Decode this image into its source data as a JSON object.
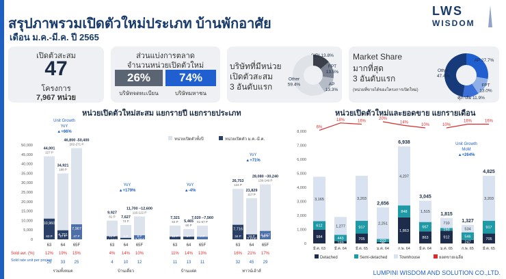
{
  "header": {
    "title": "สรุปภาพรวมเปิดตัวใหม่ประเภท บ้านพักอาศัย",
    "subtitle": "เดือน ม.ค.-มี.ค. ปี 2565",
    "logo_line1": "LWS",
    "logo_line2": "WISDOM"
  },
  "kpi_launch": {
    "label": "เปิดตัวสะสม",
    "value": "47",
    "unit": "โครงการ",
    "units_text": "7,967 หน่วย"
  },
  "kpi_share": {
    "title_line1": "ส่วนแบ่งการตลาด",
    "title_line2": "จำนวนหน่วยเปิดตัวใหม่",
    "listed_value": "26%",
    "listed_label": "บริษัทจดทะเบียน",
    "nonlisted_value": "74%",
    "nonlisted_label": "บริษัทมหาชน",
    "colors": {
      "listed": "#5b6472",
      "nonlisted": "#1f5fd0"
    }
  },
  "kpi_top3": {
    "line1": "บริษัทที่มีหน่วย",
    "line2": "เปิดตัวสะสม",
    "line3": "3 อันดับแรก",
    "donut": [
      {
        "label": "SIRI",
        "value": 13.8,
        "text": "SIRI 13.8%",
        "color": "#3a3f4a"
      },
      {
        "label": "FPT",
        "value": 13.5,
        "text": "FPT\n13.5%",
        "color": "#7a8190"
      },
      {
        "label": "AP",
        "value": 13.3,
        "text": "AP\n13.3%",
        "color": "#b6bcc7"
      },
      {
        "label": "Other",
        "value": 59.4,
        "text": "Other\n59.4%",
        "color": "#dfe2e7"
      }
    ]
  },
  "kpi_market": {
    "line1": "Market Share",
    "line2": "มากที่สุด",
    "line3": "3 อันดับแรก",
    "note": "(หน่วยที่ขายได้ของโครงการเปิดใหม่)",
    "donut": [
      {
        "label": "AP",
        "value": 27.7,
        "text": "AP 27.7%",
        "color": "#1f5fd0"
      },
      {
        "label": "FPT",
        "value": 13.0,
        "text": "FPT\n13.0%",
        "color": "#8fb0e6"
      },
      {
        "label": "ศุภาลัย",
        "value": 11.9,
        "text": "ศุภาลัย 11.9%",
        "color": "#3a6fd8"
      },
      {
        "label": "Other",
        "value": 47.4,
        "text": "Other\n47.4%",
        "color": "#173a7a"
      }
    ]
  },
  "footer": {
    "company": "LUMPINI WISDOM AND SOLUTION CO.,LTD."
  },
  "chart_data": [
    {
      "type": "bar",
      "title": "หน่วยเปิดตัวใหม่สะสม แยกรายปี แยกรายประเภท",
      "legend": [
        "หน่วยเปิดตัวทั้งปี",
        "หน่วยเปิดตัว ม.ค.-มี.ค."
      ],
      "colors": {
        "full": "#dde3ec",
        "q1": "#2a3f66",
        "q1_light": "#4f6fa8"
      },
      "yticks": [
        "50,000",
        "45,000",
        "40,000",
        "35,000",
        "30,000",
        "25,000",
        "20,000",
        "15,000",
        "10,000",
        "5,000",
        "0"
      ],
      "ylim": [
        0,
        50000
      ],
      "categories": [
        "63",
        "64",
        "65F"
      ],
      "groups": [
        {
          "name": "รวมทั้งหมด",
          "full": [
            44001,
            34921,
            48300
          ],
          "full_labels": [
            "44,001",
            "34,921",
            "46,800 -50,400"
          ],
          "full_sub": [
            "227 P",
            "188 P",
            "262-271 P"
          ],
          "q1": [
            10960,
            4791,
            7967
          ],
          "q1_labels": [
            "10,960",
            "4,791",
            "7,967"
          ],
          "q1_sub": [
            "63 P",
            "27 P",
            "47 P"
          ],
          "growth": "+66%",
          "growth_label": "Unit Growth",
          "growth_sub": "YoY"
        },
        {
          "name": "บ้านเดี่ยว",
          "full": [
            9927,
            7627,
            12150
          ],
          "full_labels": [
            "9,927",
            "7,627",
            "11,700 –12,600"
          ],
          "full_sub": [
            "81 P",
            "74 P",
            "116-122 P"
          ],
          "q1": [
            1623,
            776,
            2164
          ],
          "q1_labels": [
            "1,623",
            "776",
            "2,164"
          ],
          "q1_sub": [
            "14 P",
            "6 P",
            "8 P"
          ],
          "growth": "+179%",
          "growth_sub": "YoY"
        },
        {
          "name": "บ้านแฝด",
          "full": [
            7321,
            5465,
            7290
          ],
          "full_labels": [
            "7,321",
            "5,465",
            "7,020 –7,560"
          ],
          "full_sub": [
            "63 P",
            "60 P",
            "61-57 P"
          ],
          "q1": [
            1421,
            1407,
            1356
          ],
          "q1_labels": [
            "1,421",
            "1,407",
            "1,356"
          ],
          "q1_sub": [
            "11 P",
            "8 P",
            "7 P"
          ],
          "growth": "-4%",
          "growth_sub": "YoY"
        },
        {
          "name": "ทาวน์เฮ้าส์",
          "full": [
            26753,
            21829,
            29145
          ],
          "full_labels": [
            "26,753",
            "21,829",
            "28,080 –30,240"
          ],
          "full_sub": [
            "124 P",
            "117 P",
            "136-149 P"
          ],
          "q1": [
            7716,
            2608,
            4447
          ],
          "q1_labels": [
            "7,716",
            "2,608",
            "4,447"
          ],
          "q1_sub": [
            "34 P",
            "19 P",
            "29 P"
          ],
          "growth": "+71%",
          "growth_sub": "YoY"
        }
      ],
      "sold_label": "Sold avr. (%)",
      "sold": [
        [
          "12%",
          "19%",
          "15%"
        ],
        [
          "4%",
          "14%",
          "10%"
        ],
        [
          "11%",
          "14%",
          "13%"
        ],
        [
          "16%",
          "21%",
          "17%"
        ]
      ],
      "rate_label": "Sold rate unit per project",
      "rate": [
        [
          "25",
          "33",
          "25"
        ],
        [
          "4",
          "10",
          "12"
        ],
        [
          "11",
          "13",
          "11"
        ],
        [
          "32",
          "45",
          "29"
        ]
      ]
    },
    {
      "type": "bar",
      "title": "หน่วยเปิดตัวใหม่และยอดขาย แยกรายเดือน",
      "yticks": [
        "8,000",
        "7,000",
        "6,000",
        "5,000",
        "4,000",
        "3,000",
        "2,000",
        "1,000",
        "0"
      ],
      "ylim": [
        0,
        8000
      ],
      "categories": [
        "มี.ค. 63",
        "มี.ค. 64",
        "มี.ค. 65",
        "ม.ค. 64",
        "ก.พ. 64",
        "มี.ค. 64",
        "ม.ค. 65",
        "ก.พ. 65",
        "มี.ค. 65"
      ],
      "totals": [
        "",
        "",
        "",
        "2,656",
        "6,938",
        "3,045",
        "1,815",
        "1,327",
        "4,825"
      ],
      "series": [
        {
          "name": "Detached",
          "color": "#1c2c4a",
          "values": [
            984,
            169,
            705,
            96,
            1863,
            863,
            912,
            247,
            705
          ],
          "labels": [
            "984",
            "169",
            "705",
            "96",
            "1,863",
            "863",
            "912",
            "247",
            "705"
          ]
        },
        {
          "name": "Semi-detached",
          "color": "#1e9aa6",
          "values": [
            612,
            443,
            917,
            222,
            848,
            667,
            193,
            546,
            917
          ],
          "labels": [
            "612",
            "443",
            "917",
            "222",
            "848",
            "667",
            "193",
            "546",
            "917"
          ]
        },
        {
          "name": "Townhouse",
          "color": "#d9e2f0",
          "values": [
            3165,
            1277,
            3203,
            2251,
            4207,
            1515,
            710,
            534,
            3203
          ],
          "labels": [
            "3,165",
            "1,277",
            "3,203",
            "2,251",
            "4,207",
            "1,515",
            "710",
            "534",
            "3,203"
          ]
        }
      ],
      "sold_line": {
        "name": "ยอดขายเฉลี่ย",
        "color": "#d82b2b",
        "values": [
          6,
          18,
          16,
          20,
          14,
          10,
          10,
          16,
          16
        ],
        "labels": [
          "6%",
          "18%",
          "16%",
          "20%",
          "14%",
          "10%",
          "10%",
          "16%",
          "16%"
        ]
      },
      "growth": "+264%",
      "growth_label": "Unit Growth",
      "growth_sub": "MoM"
    }
  ]
}
